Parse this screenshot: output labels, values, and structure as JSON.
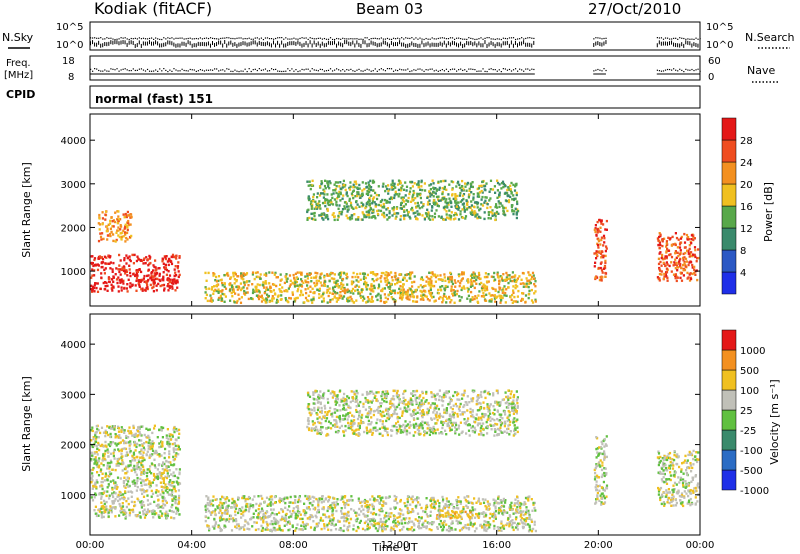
{
  "header": {
    "station": "Kodiak",
    "algorithm": "(fitACF)",
    "beam": "Beam 03",
    "date": "27/Oct/2010"
  },
  "top_panels": {
    "nsky_label": "N.Sky",
    "nsearch_label": "N.Search",
    "nsky_ticks": [
      "10^5",
      "10^0"
    ],
    "nsearch_ticks": [
      "10^5",
      "10^0"
    ],
    "freq_label_1": "Freq.",
    "freq_label_2": "[MHz]",
    "freq_ticks": [
      "18",
      "8"
    ],
    "nave_label": "Nave",
    "nave_ticks": [
      "60",
      "0"
    ],
    "cpid_label": "CPID",
    "cpid_text": "normal (fast) 151"
  },
  "chart_data": [
    {
      "type": "heatmap",
      "name": "power",
      "ylabel": "Slant Range [km]",
      "yticks": [
        "1000",
        "2000",
        "3000",
        "4000"
      ],
      "ylim": [
        200,
        4600
      ],
      "xlim": [
        0,
        24
      ],
      "colorbar_label": "Power [dB]",
      "colorbar_ticks": [
        "4",
        "8",
        "12",
        "16",
        "20",
        "24",
        "28"
      ],
      "colors": [
        "#1f2fe8",
        "#2b58c4",
        "#3a8a6c",
        "#58a84a",
        "#f0c020",
        "#f39020",
        "#ef4d20",
        "#e41818"
      ],
      "regions": [
        {
          "t0": 0.0,
          "t1": 3.5,
          "r0": 550,
          "r1": 1400,
          "level": 7
        },
        {
          "t0": 0.3,
          "t1": 1.6,
          "r0": 1700,
          "r1": 2400,
          "level": 5
        },
        {
          "t0": 4.5,
          "t1": 17.5,
          "r0": 300,
          "r1": 1000,
          "level": 4
        },
        {
          "t0": 8.5,
          "t1": 16.8,
          "r0": 2200,
          "r1": 3100,
          "level": 3
        },
        {
          "t0": 19.8,
          "t1": 20.3,
          "r0": 800,
          "r1": 2200,
          "level": 6
        },
        {
          "t0": 22.3,
          "t1": 23.9,
          "r0": 800,
          "r1": 1900,
          "level": 6
        }
      ]
    },
    {
      "type": "heatmap",
      "name": "velocity",
      "ylabel": "Slant Range [km]",
      "yticks": [
        "1000",
        "2000",
        "3000",
        "4000"
      ],
      "ylim": [
        200,
        4600
      ],
      "xlim": [
        0,
        24
      ],
      "xlabel": "Time UT",
      "xticks": [
        "00:00",
        "04:00",
        "08:00",
        "12:00",
        "16:00",
        "20:00",
        "00:00"
      ],
      "colorbar_label": "Velocity [m s⁻¹]",
      "colorbar_ticks": [
        "1000",
        "500",
        "100",
        "25",
        "-25",
        "-100",
        "-500",
        "-1000"
      ],
      "colors": [
        "#1f2fe8",
        "#2b6cc4",
        "#3a8a6c",
        "#60c040",
        "#c0c0b8",
        "#f0c020",
        "#f39020",
        "#e41818"
      ],
      "regions": [
        {
          "t0": 0.0,
          "t1": 3.5,
          "r0": 550,
          "r1": 2400,
          "level": 4
        },
        {
          "t0": 4.5,
          "t1": 17.5,
          "r0": 300,
          "r1": 1000,
          "level": 4
        },
        {
          "t0": 8.5,
          "t1": 16.8,
          "r0": 2200,
          "r1": 3100,
          "level": 4
        },
        {
          "t0": 13.5,
          "t1": 15.0,
          "r0": 550,
          "r1": 700,
          "level": 5
        },
        {
          "t0": 19.8,
          "t1": 20.3,
          "r0": 800,
          "r1": 2200,
          "level": 4
        },
        {
          "t0": 22.3,
          "t1": 23.9,
          "r0": 800,
          "r1": 1900,
          "level": 4
        }
      ]
    }
  ]
}
